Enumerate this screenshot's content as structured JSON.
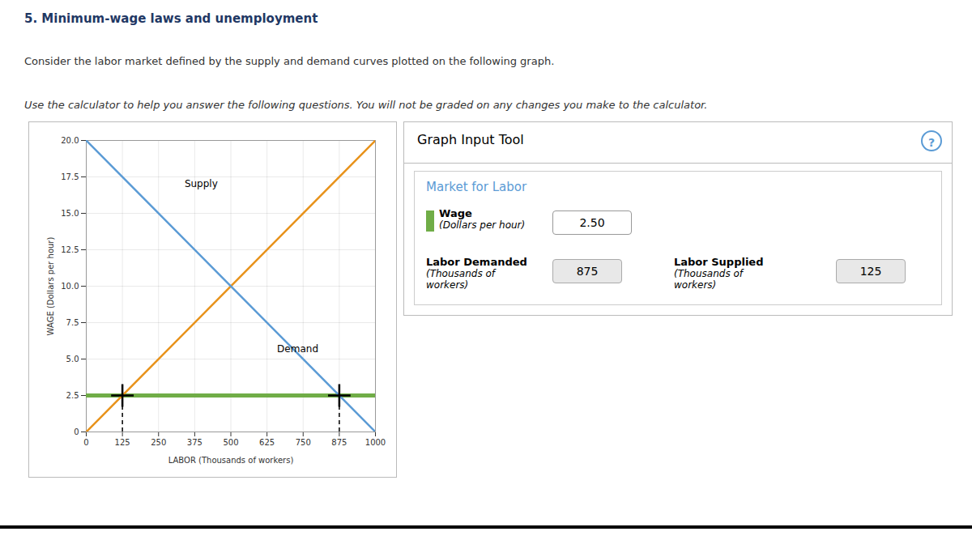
{
  "chart_data": {
    "type": "line",
    "title": "5. Minimum-wage laws and unemployment",
    "subtitle": [
      "Consider the labor market defined by the supply and demand curves plotted on the following graph.",
      "Use the calculator to help you answer the following questions. You will not be graded on any changes you make to the calculator."
    ],
    "x_label": "LABOR (Thousands of workers)",
    "y_label": "WAGE (Dollars per hour)",
    "xlim": [
      0,
      1000
    ],
    "ylim": [
      0,
      20.0
    ],
    "xticks": [
      0,
      125,
      250,
      375,
      500,
      625,
      750,
      875,
      1000
    ],
    "yticks": [
      0,
      2.5,
      {
        "value": 5.0,
        "label": "5.0"
      },
      7.5,
      {
        "value": 10.0,
        "label": "10.0"
      },
      12.5,
      {
        "value": 15.0,
        "label": "15.0"
      },
      17.5,
      {
        "value": 20.0,
        "label": "20.0"
      }
    ],
    "grid": true,
    "x": [
      0,
      1000
    ],
    "series": [
      {
        "name": "Supply",
        "color": "#E8921A",
        "values": [
          0,
          20.0
        ],
        "label_x": 340,
        "label_y": 16.8
      },
      {
        "name": "Demand",
        "color": "#5B9BD5",
        "values": [
          20.0,
          0
        ],
        "label_x": 660,
        "label_y": 5.5
      }
    ],
    "reference_lines": [
      {
        "y": 2.5,
        "color": "#70AD47"
      }
    ],
    "points": [
      {
        "x": 125,
        "y": 2.5
      },
      {
        "x": 875,
        "y": 2.5
      }
    ],
    "marker": "plus",
    "line_style": "dashed",
    "panel": {
      "title": "Graph Input Tool",
      "button": "?",
      "subtitle": "Market for Labor",
      "fields": [
        {
          "label": "Wage",
          "sublabel": "(Dollars per hour)",
          "value": "2.50",
          "color": "#70AD47"
        },
        {
          "label": "Labor Demanded",
          "sublabel": "(Thousands of\nworkers)",
          "value": "875"
        },
        {
          "label": "Labor Supplied",
          "sublabel": "(Thousands of\nworkers)",
          "value": "125"
        }
      ]
    }
  }
}
